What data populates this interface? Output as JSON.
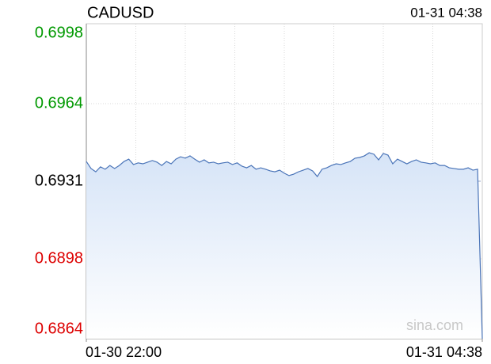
{
  "chart_data": {
    "type": "line",
    "title": "CADUSD",
    "timestamp": "01-31 04:38",
    "watermark": "sina.com",
    "ylim": [
      0.6864,
      0.6998
    ],
    "yticks": [
      0.6998,
      0.6964,
      0.6931,
      0.6898,
      0.6864
    ],
    "ytick_colors": [
      "#009900",
      "#009900",
      "#000000",
      "#dd0000",
      "#dd0000"
    ],
    "reference_line": 0.6931,
    "grid": true,
    "categories": [
      "01-30 22:00",
      null,
      null,
      null,
      null,
      null,
      null,
      null,
      null,
      null,
      null,
      null,
      null,
      null,
      null,
      null,
      null,
      null,
      null,
      null,
      null,
      null,
      null,
      null,
      null,
      null,
      null,
      null,
      null,
      null,
      null,
      null,
      null,
      null,
      null,
      null,
      null,
      null,
      null,
      null,
      null,
      null,
      null,
      null,
      null,
      null,
      null,
      null,
      null,
      null,
      null,
      null,
      null,
      null,
      null,
      null,
      null,
      null,
      null,
      null,
      null,
      null,
      null,
      null,
      null,
      null,
      null,
      null,
      null,
      null,
      null,
      null,
      null,
      null,
      null,
      null,
      null,
      null,
      null,
      null,
      null,
      null,
      null,
      null,
      "01-31 04:38"
    ],
    "series": [
      {
        "name": "CADUSD",
        "color": "#4a74b8",
        "values": [
          0.69394,
          0.69364,
          0.6935,
          0.69371,
          0.69361,
          0.69377,
          0.69364,
          0.69377,
          0.69394,
          0.69404,
          0.69381,
          0.69388,
          0.69384,
          0.69391,
          0.69398,
          0.69391,
          0.69377,
          0.69394,
          0.69384,
          0.69404,
          0.69414,
          0.69408,
          0.69418,
          0.69404,
          0.69391,
          0.69401,
          0.69388,
          0.69391,
          0.69384,
          0.69388,
          0.69391,
          0.69381,
          0.69388,
          0.69374,
          0.69367,
          0.69377,
          0.69361,
          0.69367,
          0.69361,
          0.69354,
          0.6935,
          0.69357,
          0.69344,
          0.69334,
          0.6934,
          0.6935,
          0.69357,
          0.69364,
          0.69354,
          0.6933,
          0.69361,
          0.69367,
          0.69377,
          0.69384,
          0.69381,
          0.69388,
          0.69394,
          0.69408,
          0.69411,
          0.69418,
          0.69431,
          0.69425,
          0.69401,
          0.69428,
          0.69421,
          0.69384,
          0.69404,
          0.69394,
          0.69384,
          0.69394,
          0.69401,
          0.69391,
          0.69388,
          0.69384,
          0.69388,
          0.69377,
          0.69377,
          0.69367,
          0.69364,
          0.69361,
          0.69361,
          0.69367,
          0.69357,
          0.69361,
          0.6864
        ]
      }
    ]
  }
}
